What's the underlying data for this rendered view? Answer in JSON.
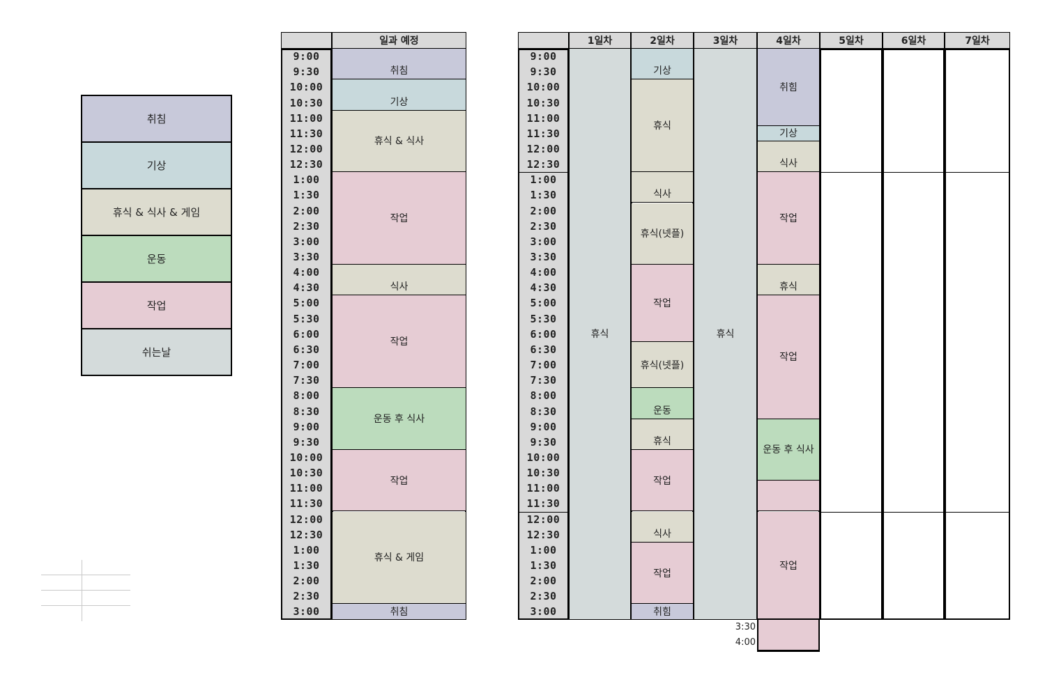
{
  "colors": {
    "sleep": "#c8c9da",
    "wake": "#c8d9dc",
    "rest": "#dddccf",
    "exercise": "#bcdcbd",
    "work": "#e6ccd4",
    "off": "#d4dbdb",
    "header": "#d9d9d9"
  },
  "legend": [
    {
      "label": "취침",
      "color": "sleep"
    },
    {
      "label": "기상",
      "color": "wake"
    },
    {
      "label": "휴식 & 식사 & 게임",
      "color": "rest"
    },
    {
      "label": "운동",
      "color": "exercise"
    },
    {
      "label": "작업",
      "color": "work"
    },
    {
      "label": "쉬는날",
      "color": "off"
    }
  ],
  "plan": {
    "header": "일과 예정",
    "times": [
      "9:00",
      "9:30",
      "10:00",
      "10:30",
      "11:00",
      "11:30",
      "12:00",
      "12:30",
      "1:00",
      "1:30",
      "2:00",
      "2:30",
      "3:00",
      "3:30",
      "4:00",
      "4:30",
      "5:00",
      "5:30",
      "6:00",
      "6:30",
      "7:00",
      "7:30",
      "8:00",
      "8:30",
      "9:00",
      "9:30",
      "10:00",
      "10:30",
      "11:00",
      "11:30",
      "12:00",
      "12:30",
      "1:00",
      "1:30",
      "2:00",
      "2:30",
      "3:00"
    ],
    "blocks": [
      {
        "label": "취침",
        "start": 0,
        "span": 2,
        "color": "sleep",
        "align": "bottom"
      },
      {
        "label": "기상",
        "start": 2,
        "span": 2,
        "color": "wake",
        "align": "bottom"
      },
      {
        "label": "휴식 & 식사",
        "start": 4,
        "span": 4,
        "color": "rest",
        "align": "center"
      },
      {
        "label": "작업",
        "start": 8,
        "span": 6,
        "color": "work",
        "align": "center"
      },
      {
        "label": "식사",
        "start": 14,
        "span": 2,
        "color": "rest",
        "align": "bottom"
      },
      {
        "label": "작업",
        "start": 16,
        "span": 6,
        "color": "work",
        "align": "center"
      },
      {
        "label": "운동 후 식사",
        "start": 22,
        "span": 4,
        "color": "exercise",
        "align": "center"
      },
      {
        "label": "작업",
        "start": 26,
        "span": 4,
        "color": "work",
        "align": "center"
      },
      {
        "label": "휴식 & 게임",
        "start": 30,
        "span": 6,
        "color": "rest",
        "align": "center"
      },
      {
        "label": "취침",
        "start": 36,
        "span": 1,
        "color": "sleep",
        "align": "center"
      }
    ]
  },
  "log": {
    "days": [
      "1일차",
      "2일차",
      "3일차",
      "4일차",
      "5일차",
      "6일차",
      "7일차"
    ],
    "extra_times": [
      "3:30",
      "4:00"
    ],
    "columns": [
      [
        {
          "label": "휴식",
          "start": 0,
          "span": 37,
          "color": "off",
          "align": "center"
        }
      ],
      [
        {
          "label": "기상",
          "start": 0,
          "span": 2,
          "color": "wake",
          "align": "bottom"
        },
        {
          "label": "휴식",
          "start": 2,
          "span": 6,
          "color": "rest",
          "align": "center"
        },
        {
          "label": "식사",
          "start": 8,
          "span": 2,
          "color": "rest",
          "align": "bottom"
        },
        {
          "label": "휴식(넷플)",
          "start": 10,
          "span": 4,
          "color": "rest",
          "align": "center"
        },
        {
          "label": "작업",
          "start": 14,
          "span": 5,
          "color": "work",
          "align": "center"
        },
        {
          "label": "휴식(넷플)",
          "start": 19,
          "span": 3,
          "color": "rest",
          "align": "center"
        },
        {
          "label": "운동",
          "start": 22,
          "span": 2,
          "color": "exercise",
          "align": "bottom"
        },
        {
          "label": "휴식",
          "start": 24,
          "span": 2,
          "color": "rest",
          "align": "bottom"
        },
        {
          "label": "작업",
          "start": 26,
          "span": 4,
          "color": "work",
          "align": "center"
        },
        {
          "label": "식사",
          "start": 30,
          "span": 2,
          "color": "rest",
          "align": "bottom"
        },
        {
          "label": "작업",
          "start": 32,
          "span": 4,
          "color": "work",
          "align": "center"
        },
        {
          "label": "취힘",
          "start": 36,
          "span": 1,
          "color": "sleep",
          "align": "center"
        }
      ],
      [
        {
          "label": "휴식",
          "start": 0,
          "span": 37,
          "color": "off",
          "align": "center"
        }
      ],
      [
        {
          "label": "취힘",
          "start": 0,
          "span": 5,
          "color": "sleep",
          "align": "center"
        },
        {
          "label": "기상",
          "start": 5,
          "span": 1,
          "color": "wake",
          "align": "center"
        },
        {
          "label": "식사",
          "start": 6,
          "span": 2,
          "color": "rest",
          "align": "bottom"
        },
        {
          "label": "작업",
          "start": 8,
          "span": 6,
          "color": "work",
          "align": "center"
        },
        {
          "label": "휴식",
          "start": 14,
          "span": 2,
          "color": "rest",
          "align": "bottom"
        },
        {
          "label": "작업",
          "start": 16,
          "span": 8,
          "color": "work",
          "align": "center"
        },
        {
          "label": "운동 후 식사",
          "start": 24,
          "span": 4,
          "color": "exercise",
          "align": "center"
        },
        {
          "label": "",
          "start": 28,
          "span": 2,
          "color": "work",
          "align": "center"
        },
        {
          "label": "작업",
          "start": 30,
          "span": 7,
          "color": "work",
          "align": "center"
        },
        {
          "label": "",
          "start": 37,
          "span": 2,
          "color": "work",
          "align": "center"
        }
      ],
      [],
      [],
      []
    ]
  }
}
